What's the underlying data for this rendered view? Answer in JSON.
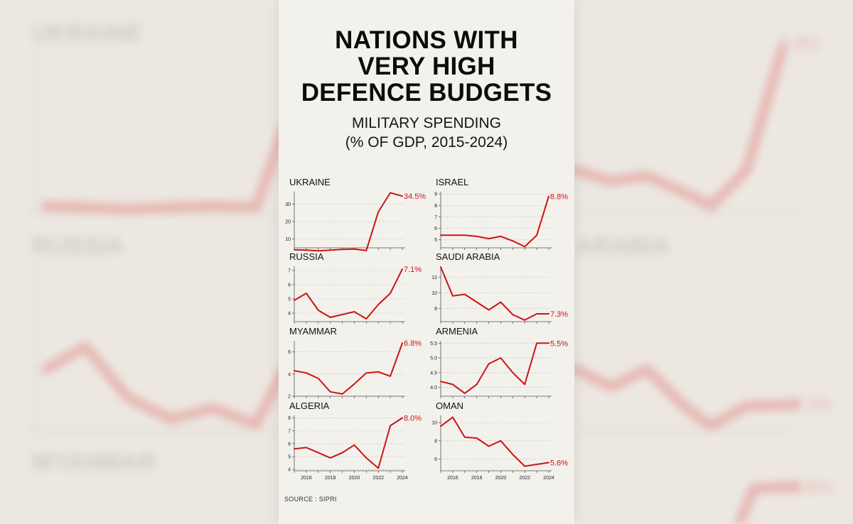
{
  "title_lines": [
    "NATIONS WITH",
    "VERY HIGH",
    "DEFENCE BUDGETS"
  ],
  "subtitle_lines": [
    "MILITARY SPENDING",
    "(% OF GDP, 2015-2024)"
  ],
  "source": "SOURCE : SIPRI",
  "colors": {
    "line": "#cc1414",
    "grid": "#c9c9c9",
    "text": "#111111",
    "card_bg": "#f3f1ec",
    "page_bg": "#ece8e1"
  },
  "chart_data": [
    {
      "type": "line",
      "title": "UKRAINE",
      "x": [
        2015,
        2016,
        2017,
        2018,
        2019,
        2020,
        2021,
        2022,
        2023,
        2024
      ],
      "values": [
        3.9,
        3.7,
        3.3,
        3.7,
        4.1,
        4.3,
        3.4,
        25.5,
        36.4,
        34.5
      ],
      "last_label": "34.5%",
      "ylim": [
        5,
        37
      ],
      "yticks": [
        10,
        20,
        30
      ],
      "ytick_labels": [
        "10",
        "20",
        "30"
      ],
      "xticks": [],
      "xtick_labels": []
    },
    {
      "type": "line",
      "title": "ISRAEL",
      "x": [
        2015,
        2016,
        2017,
        2018,
        2019,
        2020,
        2021,
        2022,
        2023,
        2024
      ],
      "values": [
        5.4,
        5.4,
        5.4,
        5.3,
        5.1,
        5.3,
        4.9,
        4.4,
        5.4,
        8.8
      ],
      "last_label": "8.8%",
      "ylim": [
        4.3,
        9.2
      ],
      "yticks": [
        5,
        6,
        7,
        8,
        9
      ],
      "ytick_labels": [
        "5",
        "6",
        "7",
        "8",
        "9"
      ],
      "xticks": [],
      "xtick_labels": []
    },
    {
      "type": "line",
      "title": "RUSSIA",
      "x": [
        2015,
        2016,
        2017,
        2018,
        2019,
        2020,
        2021,
        2022,
        2023,
        2024
      ],
      "values": [
        4.9,
        5.4,
        4.2,
        3.7,
        3.9,
        4.1,
        3.6,
        4.6,
        5.4,
        7.1
      ],
      "last_label": "7.1%",
      "ylim": [
        3.4,
        7.3
      ],
      "yticks": [
        4,
        5,
        6,
        7
      ],
      "ytick_labels": [
        "4",
        "5",
        "6",
        "7"
      ],
      "xticks": [],
      "xtick_labels": []
    },
    {
      "type": "line",
      "title": "SAUDI ARABIA",
      "x": [
        2015,
        2016,
        2017,
        2018,
        2019,
        2020,
        2021,
        2022,
        2023,
        2024
      ],
      "values": [
        13.3,
        9.6,
        9.8,
        8.8,
        7.8,
        8.8,
        7.2,
        6.5,
        7.3,
        7.3
      ],
      "last_label": "7.3%",
      "ylim": [
        6.3,
        13.4
      ],
      "yticks": [
        8,
        10,
        12
      ],
      "ytick_labels": [
        "8",
        "10",
        "12"
      ],
      "xticks": [],
      "xtick_labels": []
    },
    {
      "type": "line",
      "title": "MYAMMAR",
      "x": [
        2015,
        2016,
        2017,
        2018,
        2019,
        2020,
        2021,
        2022,
        2023,
        2024
      ],
      "values": [
        4.3,
        4.1,
        3.6,
        2.4,
        2.2,
        3.1,
        4.1,
        4.2,
        3.8,
        6.8
      ],
      "last_label": "6.8%",
      "ylim": [
        2.0,
        7.0
      ],
      "yticks": [
        2,
        4,
        6
      ],
      "ytick_labels": [
        "2",
        "4",
        "6"
      ],
      "xticks": [],
      "xtick_labels": []
    },
    {
      "type": "line",
      "title": "ARMENIA",
      "x": [
        2015,
        2016,
        2017,
        2018,
        2019,
        2020,
        2021,
        2022,
        2023,
        2024
      ],
      "values": [
        4.2,
        4.1,
        3.8,
        4.1,
        4.8,
        5.0,
        4.5,
        4.1,
        5.5,
        5.5
      ],
      "last_label": "5.5%",
      "ylim": [
        3.7,
        5.58
      ],
      "yticks": [
        4.0,
        4.5,
        5.0,
        5.5
      ],
      "ytick_labels": [
        "4.0",
        "4.5",
        "5.0",
        "5.5"
      ],
      "xticks": [],
      "xtick_labels": []
    },
    {
      "type": "line",
      "title": "ALGERIA",
      "x": [
        2015,
        2016,
        2017,
        2018,
        2019,
        2020,
        2021,
        2022,
        2023,
        2024
      ],
      "values": [
        5.6,
        5.7,
        5.3,
        4.9,
        5.3,
        5.9,
        4.9,
        4.1,
        7.4,
        8.0
      ],
      "last_label": "8.0%",
      "ylim": [
        3.9,
        8.2
      ],
      "yticks": [
        4,
        5,
        6,
        7,
        8
      ],
      "ytick_labels": [
        "4",
        "5",
        "6",
        "7",
        "8"
      ],
      "xticks": [
        2016,
        2018,
        2020,
        2022,
        2024
      ],
      "xtick_labels": [
        "2016",
        "2018",
        "2020",
        "2022",
        "2024"
      ]
    },
    {
      "type": "line",
      "title": "OMAN",
      "x": [
        2015,
        2016,
        2017,
        2018,
        2019,
        2020,
        2021,
        2022,
        2023,
        2024
      ],
      "values": [
        9.6,
        10.6,
        8.4,
        8.3,
        7.4,
        8.0,
        6.5,
        5.2,
        5.4,
        5.6
      ],
      "last_label": "5.6%",
      "ylim": [
        4.7,
        10.8
      ],
      "yticks": [
        6,
        8,
        10
      ],
      "ytick_labels": [
        "6",
        "8",
        "10"
      ],
      "xticks": [
        2016,
        2018,
        2020,
        2022,
        2024
      ],
      "xtick_labels": [
        "2016",
        "2018",
        "2020",
        "2022",
        "2024"
      ]
    }
  ]
}
